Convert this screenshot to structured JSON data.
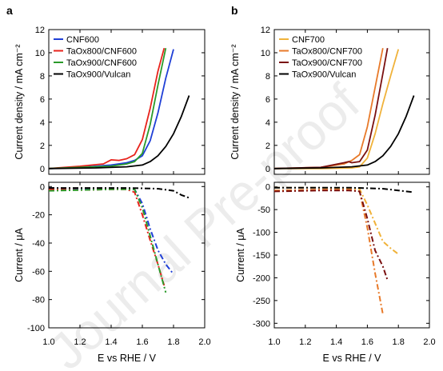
{
  "watermark": "Journal Pre-proof",
  "colors": {
    "CNF600": "#1f3fd6",
    "TaOx800/CNF600": "#e8231c",
    "TaOx900/CNF600": "#2a9a2a",
    "TaOx900/Vulcan": "#000000",
    "CNF700": "#f0b23a",
    "TaOx800/CNF700": "#e87a2a",
    "TaOx900/CNF700": "#7a1010"
  },
  "chart_data": [
    {
      "panel": "a",
      "type": "line",
      "ylabel_top": "Current density / mA cm⁻²",
      "ylabel_bottom": "Current / μA",
      "xlabel": "E vs RHE / V",
      "xlim": [
        1.0,
        2.0
      ],
      "xticks": [
        "1.0",
        "1.2",
        "1.4",
        "1.6",
        "1.8",
        "2.0"
      ],
      "top": {
        "ylim": [
          -0.5,
          12
        ],
        "yticks": [
          "0",
          "2",
          "4",
          "6",
          "8",
          "10",
          "12"
        ],
        "legend": "top-left",
        "series": [
          {
            "name": "CNF600",
            "x": [
              1.0,
              1.2,
              1.4,
              1.5,
              1.55,
              1.6,
              1.65,
              1.7,
              1.75,
              1.8
            ],
            "y": [
              0,
              0.1,
              0.3,
              0.5,
              0.7,
              1.1,
              2.4,
              4.8,
              7.8,
              10.3
            ]
          },
          {
            "name": "TaOx800/CNF600",
            "x": [
              1.0,
              1.2,
              1.35,
              1.4,
              1.45,
              1.5,
              1.55,
              1.6,
              1.65,
              1.7,
              1.74
            ],
            "y": [
              0,
              0.2,
              0.4,
              0.75,
              0.7,
              0.85,
              1.2,
              2.5,
              5.2,
              8.4,
              10.4
            ]
          },
          {
            "name": "TaOx900/CNF600",
            "x": [
              1.0,
              1.2,
              1.4,
              1.5,
              1.55,
              1.6,
              1.65,
              1.7,
              1.75
            ],
            "y": [
              0,
              0.1,
              0.2,
              0.4,
              0.6,
              1.3,
              3.8,
              7.2,
              10.4
            ]
          },
          {
            "name": "TaOx900/Vulcan",
            "x": [
              1.0,
              1.3,
              1.5,
              1.6,
              1.65,
              1.7,
              1.75,
              1.8,
              1.85,
              1.9
            ],
            "y": [
              0,
              0.05,
              0.15,
              0.3,
              0.6,
              1.1,
              1.9,
              3.0,
              4.5,
              6.3
            ]
          }
        ]
      },
      "bottom": {
        "ylim": [
          -100,
          3
        ],
        "yticks": [
          "0",
          "-20",
          "-40",
          "-60",
          "-80",
          "-100"
        ],
        "series": [
          {
            "name": "CNF600",
            "x": [
              1.0,
              1.2,
              1.4,
              1.55,
              1.6,
              1.65,
              1.7,
              1.75,
              1.8
            ],
            "y": [
              -1,
              -1.5,
              -1.5,
              -2,
              -12,
              -30,
              -45,
              -55,
              -62
            ]
          },
          {
            "name": "TaOx800/CNF600",
            "x": [
              1.0,
              1.2,
              1.4,
              1.5,
              1.55,
              1.6,
              1.65,
              1.7,
              1.74
            ],
            "y": [
              -2,
              -2.5,
              -2,
              -2,
              -4,
              -20,
              -38,
              -55,
              -70
            ]
          },
          {
            "name": "TaOx900/CNF600",
            "x": [
              1.0,
              1.2,
              1.4,
              1.55,
              1.6,
              1.65,
              1.7,
              1.75
            ],
            "y": [
              -3,
              -2.5,
              -2,
              -2,
              -15,
              -35,
              -55,
              -75
            ]
          },
          {
            "name": "TaOx900/Vulcan",
            "x": [
              1.0,
              1.3,
              1.5,
              1.7,
              1.8,
              1.85,
              1.9
            ],
            "y": [
              -1,
              -1,
              -1,
              -1.5,
              -3,
              -6,
              -8
            ]
          }
        ]
      }
    },
    {
      "panel": "b",
      "type": "line",
      "ylabel_top": "Current density / mA cm⁻²",
      "ylabel_bottom": "Current / μA",
      "xlabel": "E vs RHE / V",
      "xlim": [
        1.0,
        2.0
      ],
      "xticks": [
        "1.0",
        "1.2",
        "1.4",
        "1.6",
        "1.8",
        "2.0"
      ],
      "top": {
        "ylim": [
          -0.5,
          12
        ],
        "yticks": [
          "0",
          "2",
          "4",
          "6",
          "8",
          "10",
          "12"
        ],
        "legend": "top-left",
        "series": [
          {
            "name": "CNF700",
            "x": [
              1.0,
              1.3,
              1.5,
              1.55,
              1.6,
              1.65,
              1.7,
              1.75,
              1.8
            ],
            "y": [
              0,
              0,
              0.05,
              0.15,
              0.9,
              3.0,
              5.6,
              8.0,
              10.3
            ]
          },
          {
            "name": "TaOx800/CNF700",
            "x": [
              1.0,
              1.3,
              1.45,
              1.5,
              1.55,
              1.6,
              1.65,
              1.7
            ],
            "y": [
              0,
              0.1,
              0.4,
              0.7,
              1.2,
              3.6,
              7.0,
              10.4
            ]
          },
          {
            "name": "TaOx900/CNF700",
            "x": [
              1.0,
              1.3,
              1.45,
              1.48,
              1.5,
              1.55,
              1.6,
              1.65,
              1.7,
              1.73
            ],
            "y": [
              0,
              0.1,
              0.5,
              0.6,
              0.5,
              0.6,
              1.6,
              4.6,
              8.2,
              10.4
            ]
          },
          {
            "name": "TaOx900/Vulcan",
            "x": [
              1.0,
              1.3,
              1.5,
              1.6,
              1.65,
              1.7,
              1.75,
              1.8,
              1.85,
              1.9
            ],
            "y": [
              0,
              0.05,
              0.15,
              0.3,
              0.6,
              1.1,
              1.9,
              3.0,
              4.5,
              6.3
            ]
          }
        ]
      },
      "bottom": {
        "ylim": [
          -310,
          10
        ],
        "yticks": [
          "0",
          "-50",
          "-100",
          "-150",
          "-200",
          "-250",
          "-300"
        ],
        "series": [
          {
            "name": "CNF700",
            "x": [
              1.0,
              1.3,
              1.5,
              1.55,
              1.6,
              1.65,
              1.7,
              1.75,
              1.8
            ],
            "y": [
              -2,
              -2,
              -3,
              -5,
              -40,
              -80,
              -120,
              -135,
              -148
            ]
          },
          {
            "name": "TaOx800/CNF700",
            "x": [
              1.0,
              1.3,
              1.5,
              1.55,
              1.6,
              1.65,
              1.7
            ],
            "y": [
              -8,
              -6,
              -6,
              -10,
              -90,
              -190,
              -280
            ]
          },
          {
            "name": "TaOx900/CNF700",
            "x": [
              1.0,
              1.3,
              1.48,
              1.55,
              1.6,
              1.65,
              1.7,
              1.73
            ],
            "y": [
              -10,
              -8,
              -8,
              -10,
              -70,
              -140,
              -175,
              -205
            ]
          },
          {
            "name": "TaOx900/Vulcan",
            "x": [
              1.0,
              1.3,
              1.5,
              1.7,
              1.8,
              1.85,
              1.9
            ],
            "y": [
              -2,
              -2,
              -2,
              -4,
              -8,
              -10,
              -12
            ]
          }
        ]
      }
    }
  ]
}
